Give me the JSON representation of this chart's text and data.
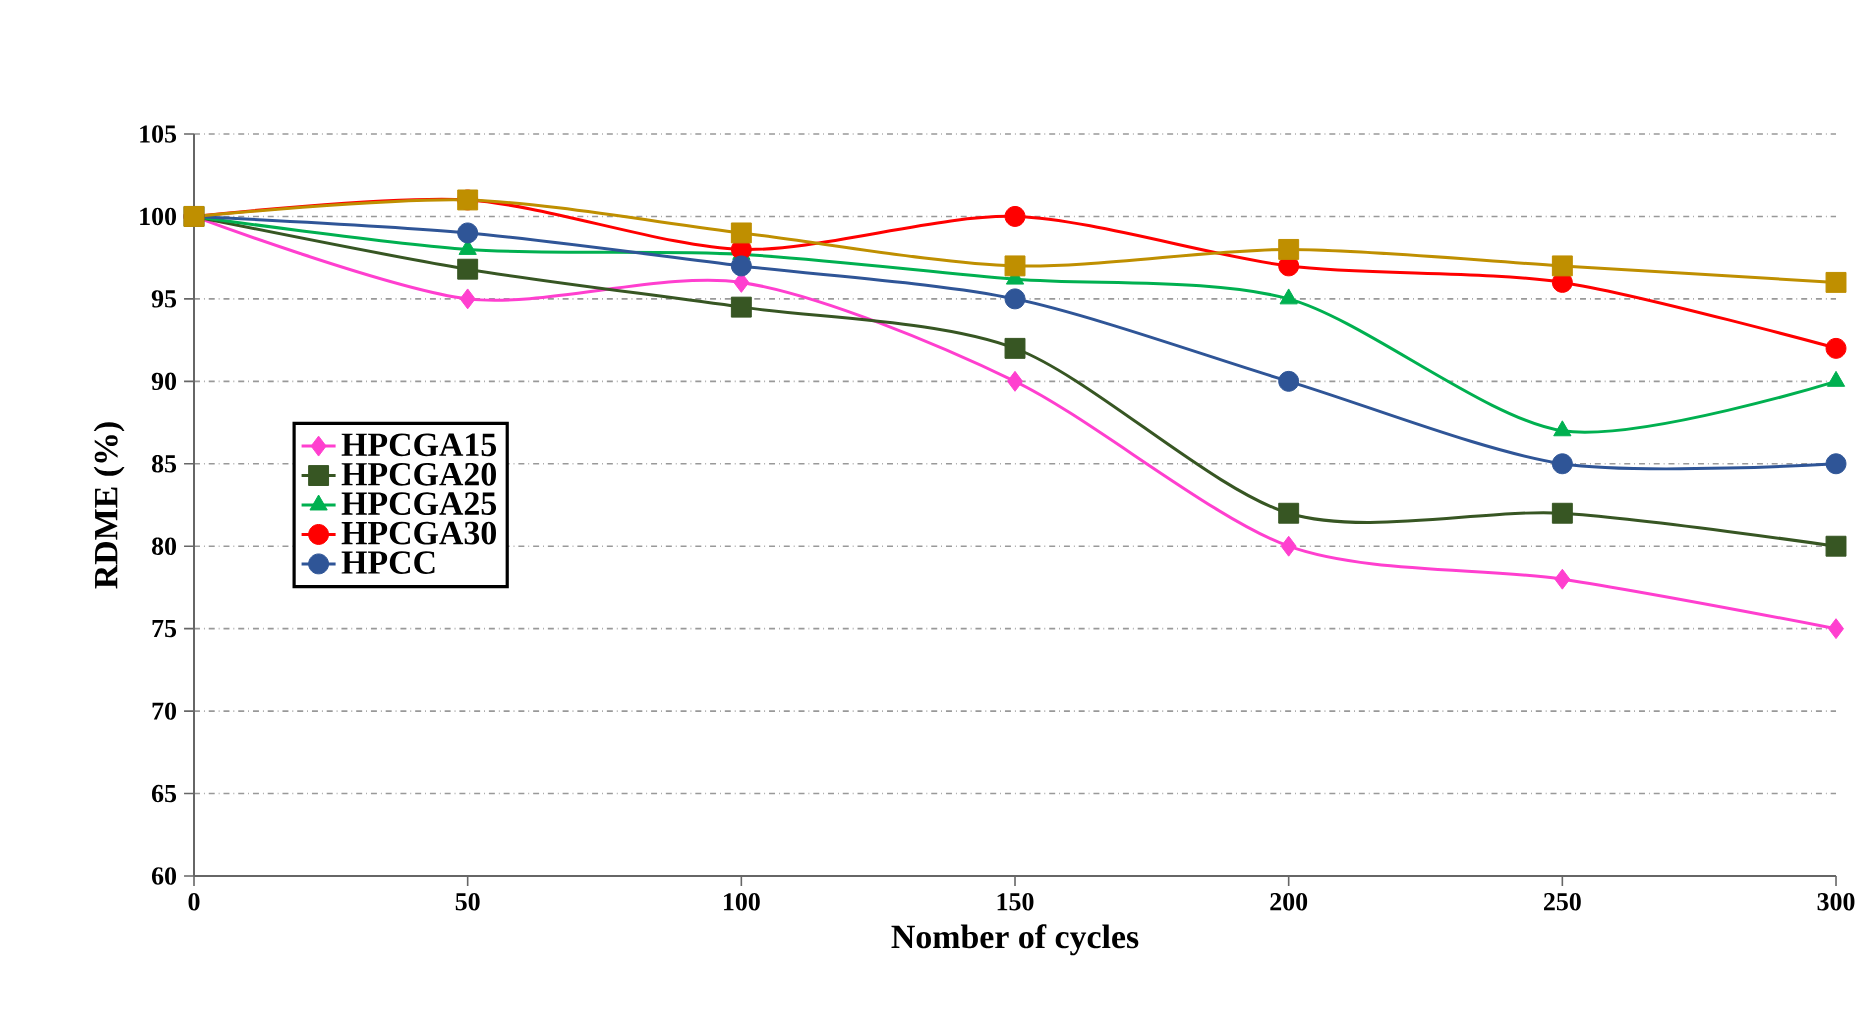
{
  "chart_data": {
    "type": "line",
    "xlabel": "Nomber of cycles",
    "ylabel": "RDME (%)",
    "x": [
      0,
      50,
      100,
      150,
      200,
      250,
      300
    ],
    "series": [
      {
        "name": "HPCGA15",
        "color": "#ff3fcf",
        "marker": "diamond",
        "values": [
          100,
          95,
          96,
          90,
          80,
          78,
          75
        ]
      },
      {
        "name": "HPCGA20",
        "color": "#375623",
        "marker": "square",
        "values": [
          100,
          96.8,
          94.5,
          92,
          82,
          82,
          80
        ]
      },
      {
        "name": "HPCGA25",
        "color": "#00b050",
        "marker": "triangle",
        "values": [
          100,
          98,
          97.7,
          96.2,
          95,
          87,
          90
        ]
      },
      {
        "name": "HPCGA30",
        "color": "#ff0000",
        "marker": "circle",
        "values": [
          100,
          101,
          98,
          100,
          97,
          96,
          92
        ]
      },
      {
        "name": "HPCC",
        "color": "#2f5597",
        "marker": "circle",
        "values": [
          100,
          99,
          97,
          95,
          90,
          85,
          85
        ]
      },
      {
        "color": "#bf8f00",
        "marker": "square",
        "values": [
          100,
          101,
          99,
          97,
          98,
          97,
          96
        ]
      }
    ],
    "xlim": [
      0,
      300
    ],
    "xticks": [
      0,
      50,
      100,
      150,
      200,
      250,
      300
    ],
    "ylim": [
      60,
      105
    ],
    "yticks": [
      60,
      65,
      70,
      75,
      80,
      85,
      90,
      95,
      100,
      105
    ],
    "grid": "y",
    "legend": "left",
    "line_style": "solid"
  }
}
